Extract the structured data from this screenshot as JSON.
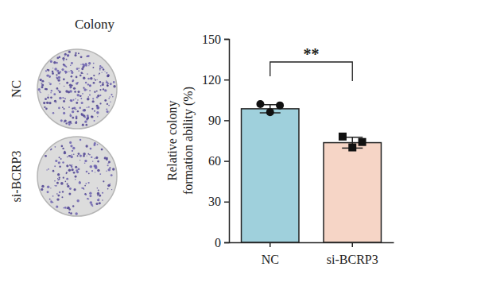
{
  "chart_data": {
    "type": "bar",
    "ylabel": "Relative colony formation ability (%)",
    "categories": [
      "NC",
      "si-BCRP3"
    ],
    "values": [
      98.5,
      73.5
    ],
    "errors": [
      3,
      4
    ],
    "points": [
      [
        102,
        96,
        101
      ],
      [
        78,
        70,
        74
      ]
    ],
    "colors": [
      "#9fd0dc",
      "#f6d5c6"
    ],
    "ylim": [
      0,
      150
    ],
    "yticks": [
      0,
      30,
      60,
      90,
      120,
      150
    ],
    "annotations": [
      "Colony",
      "**"
    ]
  }
}
